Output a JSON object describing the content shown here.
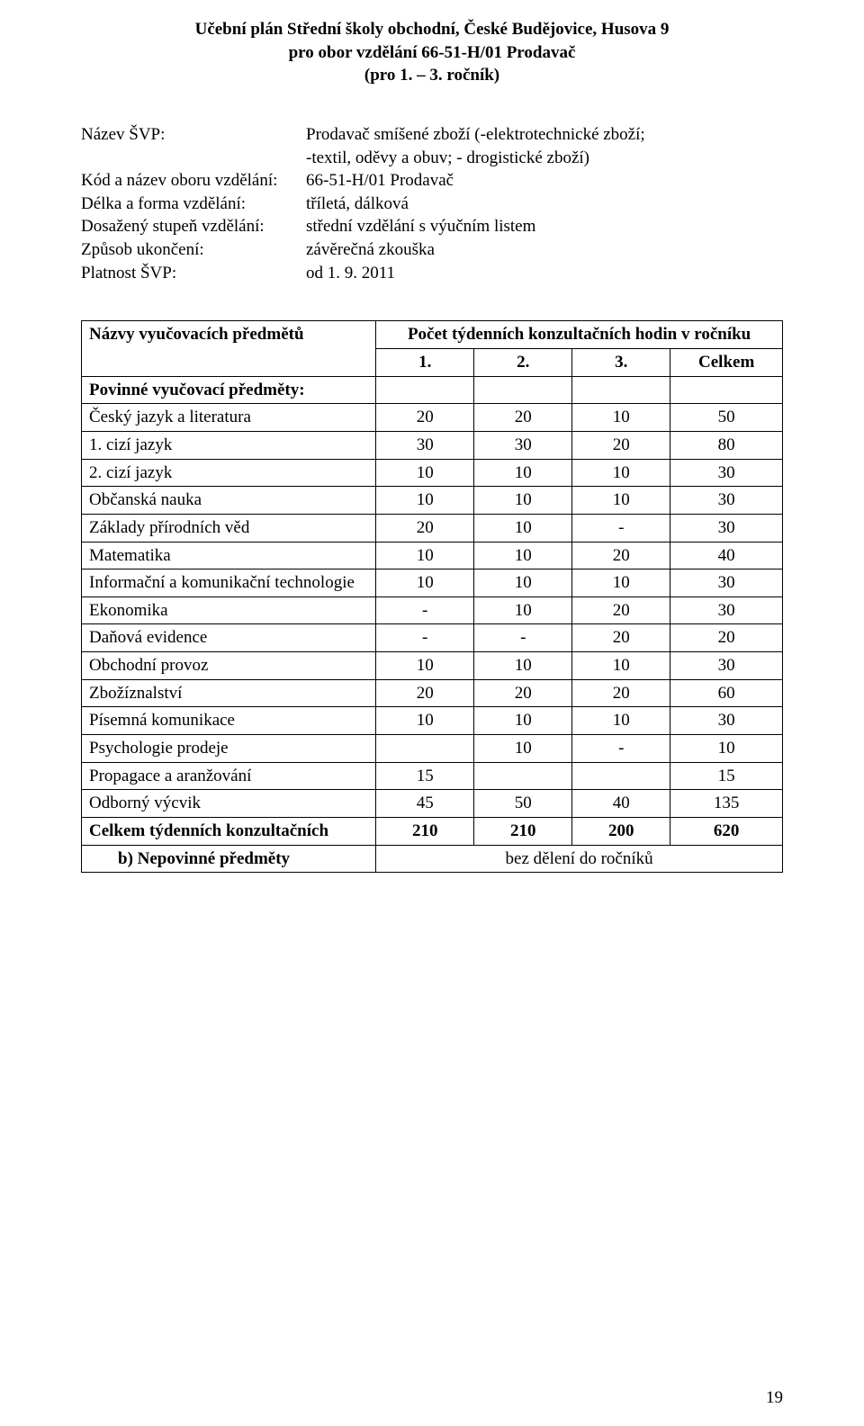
{
  "header": {
    "line1": "Učební plán Střední školy obchodní, České Budějovice, Husova 9",
    "line2": "pro obor vzdělání 66-51-H/01 Prodavač",
    "line3": "(pro 1. – 3. ročník)"
  },
  "info": {
    "rows": [
      {
        "label": "Název ŠVP:",
        "lines": [
          "Prodavač smíšené zboží (-elektrotechnické zboží;",
          "-textil, oděvy a obuv; - drogistické zboží)"
        ]
      },
      {
        "label": "Kód a název oboru vzdělání:",
        "lines": [
          "66-51-H/01 Prodavač"
        ]
      },
      {
        "label": "Délka a forma vzdělání:",
        "lines": [
          "tříletá, dálková"
        ]
      },
      {
        "label": "Dosažený stupeň vzdělání:",
        "lines": [
          "střední vzdělání s výučním listem"
        ]
      },
      {
        "label": "Způsob ukončení:",
        "lines": [
          "závěrečná zkouška"
        ]
      },
      {
        "label": "Platnost ŠVP:",
        "lines": [
          "od 1. 9. 2011"
        ]
      }
    ]
  },
  "table": {
    "hdr_subjects": "Názvy vyučovacích předmětů",
    "hdr_hours_title": "Počet týdenních konzultačních hodin v ročníku",
    "cols": [
      "1.",
      "2.",
      "3.",
      "Celkem"
    ],
    "section_mandatory": "Povinné vyučovací předměty:",
    "rows": [
      {
        "subject": "Český jazyk a literatura",
        "c1": "20",
        "c2": "20",
        "c3": "10",
        "total": "50"
      },
      {
        "subject": "1. cizí jazyk",
        "c1": "30",
        "c2": "30",
        "c3": "20",
        "total": "80"
      },
      {
        "subject": "2. cizí jazyk",
        "c1": "10",
        "c2": "10",
        "c3": "10",
        "total": "30"
      },
      {
        "subject": "Občanská nauka",
        "c1": "10",
        "c2": "10",
        "c3": "10",
        "total": "30"
      },
      {
        "subject": "Základy přírodních věd",
        "c1": "20",
        "c2": "10",
        "c3": "-",
        "total": "30"
      },
      {
        "subject": "Matematika",
        "c1": "10",
        "c2": "10",
        "c3": "20",
        "total": "40"
      },
      {
        "subject": "Informační a komunikační technologie",
        "c1": "10",
        "c2": "10",
        "c3": "10",
        "total": "30"
      },
      {
        "subject": "Ekonomika",
        "c1": "-",
        "c2": "10",
        "c3": "20",
        "total": "30"
      },
      {
        "subject": "Daňová evidence",
        "c1": "-",
        "c2": "-",
        "c3": "20",
        "total": "20"
      },
      {
        "subject": "Obchodní provoz",
        "c1": "10",
        "c2": "10",
        "c3": "10",
        "total": "30"
      },
      {
        "subject": "Zbožíznalství",
        "c1": "20",
        "c2": "20",
        "c3": "20",
        "total": "60"
      },
      {
        "subject": "Písemná komunikace",
        "c1": "10",
        "c2": "10",
        "c3": "10",
        "total": "30"
      },
      {
        "subject": "Psychologie prodeje",
        "c1": "",
        "c2": "10",
        "c3": "-",
        "total": "10"
      },
      {
        "subject": "Propagace a aranžování",
        "c1": "15",
        "c2": "",
        "c3": "",
        "total": "15"
      },
      {
        "subject": "Odborný výcvik",
        "c1": "45",
        "c2": "50",
        "c3": "40",
        "total": "135"
      }
    ],
    "totals_row": {
      "subject": "Celkem týdenních konzultačních",
      "c1": "210",
      "c2": "210",
      "c3": "200",
      "total": "620"
    },
    "footer_row": {
      "label": "b) Nepovinné předměty",
      "text": "bez dělení do ročníků"
    }
  },
  "page_number": "19"
}
